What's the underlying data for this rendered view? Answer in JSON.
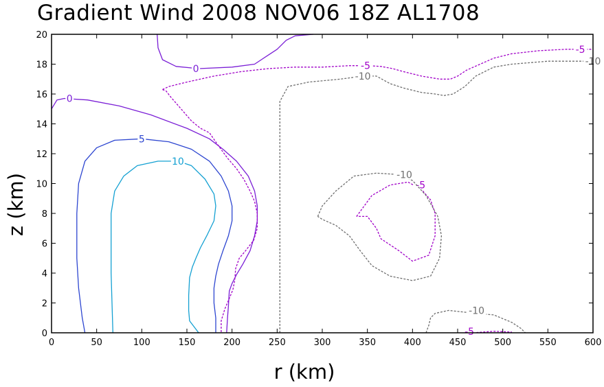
{
  "chart_data": {
    "type": "contour",
    "title": "Gradient Wind 2008 NOV06 18Z  AL1708",
    "xlabel": "r (km)",
    "ylabel": "z (km)",
    "xlim": [
      0,
      600
    ],
    "ylim": [
      0,
      20
    ],
    "x_ticks": [
      0,
      50,
      100,
      150,
      200,
      250,
      300,
      350,
      400,
      450,
      500,
      550,
      600
    ],
    "y_ticks": [
      0,
      2,
      4,
      6,
      8,
      10,
      12,
      14,
      16,
      18,
      20
    ],
    "grid": false,
    "contours": [
      {
        "level": 0,
        "label": "0",
        "color": "#7a1ed6",
        "style": "solid",
        "paths": [
          [
            [
              117,
              20
            ],
            [
              118,
              19.1
            ],
            [
              123,
              18.3
            ],
            [
              138,
              17.85
            ],
            [
              163,
              17.7
            ],
            [
              200,
              17.8
            ],
            [
              225,
              18
            ],
            [
              240,
              18.6
            ],
            [
              250,
              19
            ],
            [
              260,
              19.6
            ],
            [
              270,
              19.9
            ],
            [
              290,
              20
            ]
          ],
          [
            [
              0,
              15
            ],
            [
              6,
              15.6
            ],
            [
              14,
              15.7
            ],
            [
              40,
              15.6
            ],
            [
              75,
              15.2
            ],
            [
              110,
              14.6
            ],
            [
              150,
              13.7
            ],
            [
              175,
              13
            ],
            [
              190,
              12.3
            ],
            [
              205,
              11.5
            ],
            [
              218,
              10.5
            ],
            [
              225,
              9.5
            ],
            [
              228,
              8.5
            ],
            [
              228,
              7.5
            ],
            [
              225,
              6.5
            ],
            [
              220,
              5.5
            ],
            [
              212,
              4.6
            ],
            [
              205,
              3.9
            ],
            [
              200,
              3.3
            ],
            [
              197,
              2.8
            ],
            [
              196,
              1.8
            ],
            [
              195,
              1
            ],
            [
              194,
              0
            ]
          ]
        ],
        "label_positions": [
          [
            20,
            15.7
          ],
          [
            160,
            17.7
          ]
        ]
      },
      {
        "level": 5,
        "label": "5",
        "color": "#2c45d0",
        "style": "solid",
        "paths": [
          [
            [
              37,
              0
            ],
            [
              34,
              1
            ],
            [
              30,
              3
            ],
            [
              28,
              5
            ],
            [
              28,
              8
            ],
            [
              30,
              10
            ],
            [
              37,
              11.5
            ],
            [
              50,
              12.4
            ],
            [
              70,
              12.9
            ],
            [
              100,
              13
            ],
            [
              130,
              12.8
            ],
            [
              155,
              12.3
            ],
            [
              175,
              11.5
            ],
            [
              188,
              10.5
            ],
            [
              196,
              9.5
            ],
            [
              200,
              8.5
            ],
            [
              200,
              7.5
            ],
            [
              196,
              6.5
            ],
            [
              190,
              5.5
            ],
            [
              185,
              4.6
            ],
            [
              182,
              3.8
            ],
            [
              180,
              3
            ],
            [
              180,
              2
            ],
            [
              182,
              1
            ],
            [
              182,
              0
            ]
          ]
        ],
        "label_positions": [
          [
            100,
            13
          ]
        ]
      },
      {
        "level": 10,
        "label": "10",
        "color": "#13a0d2",
        "style": "solid",
        "paths": [
          [
            [
              68,
              0
            ],
            [
              67,
              2
            ],
            [
              66,
              4
            ],
            [
              66,
              6
            ],
            [
              66,
              8
            ],
            [
              70,
              9.5
            ],
            [
              80,
              10.5
            ],
            [
              95,
              11.2
            ],
            [
              118,
              11.5
            ],
            [
              140,
              11.5
            ],
            [
              155,
              11.2
            ],
            [
              170,
              10.3
            ],
            [
              180,
              9.3
            ],
            [
              182,
              8.5
            ],
            [
              180,
              7.5
            ],
            [
              172,
              6.5
            ],
            [
              165,
              5.7
            ],
            [
              160,
              5
            ],
            [
              156,
              4.4
            ],
            [
              153,
              3.7
            ],
            [
              152,
              2.5
            ],
            [
              152,
              1.5
            ],
            [
              153,
              0.8
            ],
            [
              163,
              0
            ]
          ]
        ],
        "label_positions": [
          [
            140,
            11.5
          ]
        ]
      },
      {
        "level": -5,
        "label": "-5",
        "color": "#a000c8",
        "style": "dashed",
        "paths": [
          [
            [
              123,
              16.3
            ],
            [
              130,
              16.5
            ],
            [
              150,
              16.8
            ],
            [
              180,
              17.2
            ],
            [
              210,
              17.5
            ],
            [
              240,
              17.7
            ],
            [
              270,
              17.8
            ],
            [
              300,
              17.8
            ],
            [
              330,
              17.9
            ],
            [
              350,
              17.9
            ],
            [
              365,
              17.85
            ],
            [
              378,
              17.7
            ],
            [
              390,
              17.5
            ],
            [
              410,
              17.2
            ],
            [
              430,
              17
            ],
            [
              442,
              17
            ],
            [
              450,
              17.2
            ],
            [
              460,
              17.6
            ],
            [
              475,
              18
            ],
            [
              490,
              18.4
            ],
            [
              510,
              18.7
            ],
            [
              540,
              18.9
            ],
            [
              570,
              19
            ],
            [
              600,
              19
            ]
          ],
          [
            [
              123,
              16.3
            ],
            [
              127,
              16.2
            ],
            [
              132,
              15.8
            ],
            [
              145,
              14.9
            ],
            [
              155,
              14.2
            ],
            [
              165,
              13.7
            ],
            [
              175,
              13.4
            ],
            [
              183,
              12.7
            ],
            [
              195,
              11.7
            ],
            [
              205,
              11
            ],
            [
              213,
              10.3
            ],
            [
              220,
              9.5
            ],
            [
              225,
              8.8
            ],
            [
              228,
              8
            ],
            [
              228,
              7
            ],
            [
              224,
              6.2
            ],
            [
              215,
              5.5
            ],
            [
              208,
              5
            ],
            [
              204,
              4.3
            ],
            [
              203,
              3.5
            ],
            [
              201,
              2.9
            ],
            [
              197,
              2.3
            ],
            [
              192,
              1.6
            ],
            [
              188,
              0.8
            ],
            [
              188,
              0
            ]
          ],
          [
            [
              338,
              7.8
            ],
            [
              355,
              9.2
            ],
            [
              375,
              9.9
            ],
            [
              395,
              10.1
            ],
            [
              410,
              9.6
            ],
            [
              420,
              8.9
            ],
            [
              425,
              8
            ],
            [
              425,
              6.5
            ],
            [
              418,
              5.2
            ],
            [
              400,
              4.8
            ],
            [
              385,
              5.5
            ],
            [
              365,
              6.3
            ],
            [
              360,
              7
            ],
            [
              350,
              7.8
            ],
            [
              338,
              7.8
            ]
          ],
          [
            [
              467,
              0
            ],
            [
              490,
              0.1
            ],
            [
              510,
              0.05
            ]
          ]
        ],
        "label_positions": [
          [
            348,
            17.9
          ],
          [
            409,
            9.9
          ],
          [
            586,
            19
          ],
          [
            463,
            0.1
          ]
        ]
      },
      {
        "level": -10,
        "label": "-10",
        "color": "#6e6e6e",
        "style": "dashed",
        "paths": [
          [
            [
              253,
              0
            ],
            [
              253,
              3
            ],
            [
              253,
              6
            ],
            [
              253,
              9
            ],
            [
              253,
              11
            ],
            [
              253,
              13
            ],
            [
              253,
              15.5
            ],
            [
              262,
              16.5
            ],
            [
              285,
              16.8
            ],
            [
              320,
              17
            ],
            [
              345,
              17.2
            ],
            [
              360,
              17.2
            ],
            [
              375,
              16.7
            ],
            [
              390,
              16.4
            ],
            [
              410,
              16.1
            ],
            [
              425,
              16
            ],
            [
              435,
              15.9
            ],
            [
              445,
              16
            ],
            [
              458,
              16.5
            ],
            [
              470,
              17.2
            ],
            [
              490,
              17.8
            ],
            [
              510,
              18
            ],
            [
              550,
              18.2
            ],
            [
              600,
              18.2
            ]
          ],
          [
            [
              295,
              7.8
            ],
            [
              300,
              8.5
            ],
            [
              315,
              9.5
            ],
            [
              335,
              10.5
            ],
            [
              360,
              10.7
            ],
            [
              385,
              10.6
            ],
            [
              400,
              10.2
            ],
            [
              415,
              9.2
            ],
            [
              428,
              7.8
            ],
            [
              432,
              6.5
            ],
            [
              430,
              5
            ],
            [
              420,
              3.8
            ],
            [
              400,
              3.5
            ],
            [
              375,
              3.8
            ],
            [
              355,
              4.5
            ],
            [
              342,
              5.5
            ],
            [
              330,
              6.5
            ],
            [
              315,
              7.2
            ],
            [
              300,
              7.6
            ],
            [
              295,
              7.8
            ]
          ],
          [
            [
              415,
              0
            ],
            [
              418,
              0.5
            ],
            [
              420,
              1
            ],
            [
              425,
              1.3
            ],
            [
              440,
              1.5
            ],
            [
              470,
              1.3
            ],
            [
              490,
              1.2
            ],
            [
              510,
              0.7
            ],
            [
              520,
              0.3
            ],
            [
              525,
              0
            ]
          ]
        ],
        "label_positions": [
          [
            345,
            17.2
          ],
          [
            391,
            10.6
          ],
          [
            471,
            1.5
          ],
          [
            600,
            18.2
          ]
        ]
      }
    ]
  }
}
